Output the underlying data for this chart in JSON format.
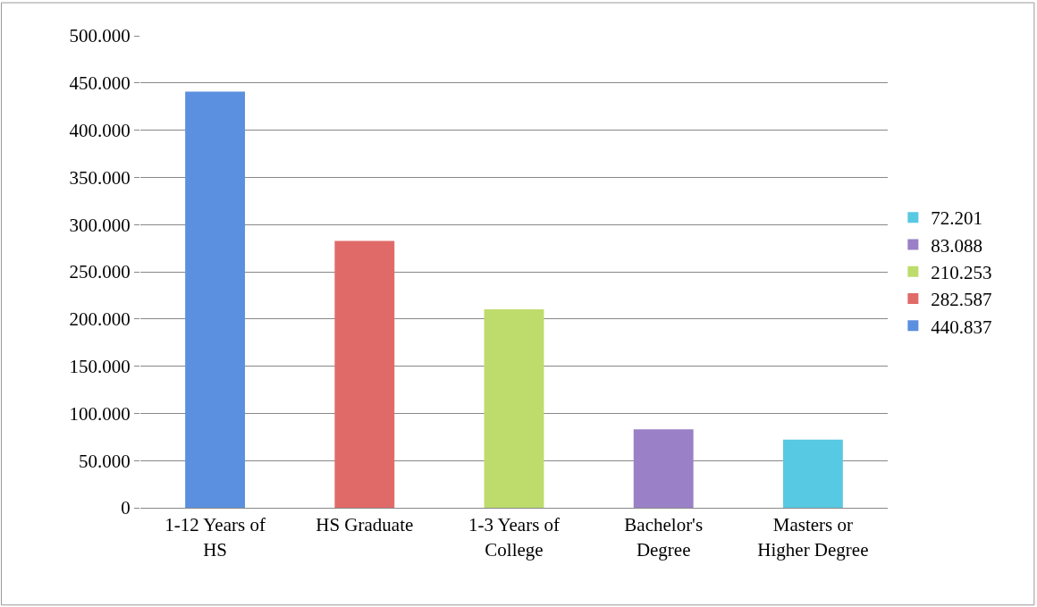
{
  "chart_data": {
    "type": "bar",
    "categories": [
      "1-12 Years of HS",
      "HS Graduate",
      "1-3 Years of College",
      "Bachelor's Degree",
      "Masters or Higher Degree"
    ],
    "series": [
      {
        "name": "440.837",
        "color": "#5b8fdf",
        "values": [
          440837,
          null,
          null,
          null,
          null
        ]
      },
      {
        "name": "282.587",
        "color": "#e06a68",
        "values": [
          null,
          282587,
          null,
          null,
          null
        ]
      },
      {
        "name": "210.253",
        "color": "#bddc6c",
        "values": [
          null,
          null,
          210253,
          null,
          null
        ]
      },
      {
        "name": "83.088",
        "color": "#9a80c6",
        "values": [
          null,
          null,
          null,
          83088,
          null
        ]
      },
      {
        "name": "72.201",
        "color": "#58c9e2",
        "values": [
          null,
          null,
          null,
          null,
          72201
        ]
      }
    ],
    "ylim": [
      0,
      500000
    ],
    "yticks": [
      {
        "value": 0,
        "label": "0"
      },
      {
        "value": 50000,
        "label": "50.000"
      },
      {
        "value": 100000,
        "label": "100.000"
      },
      {
        "value": 150000,
        "label": "150.000"
      },
      {
        "value": 200000,
        "label": "200.000"
      },
      {
        "value": 250000,
        "label": "250.000"
      },
      {
        "value": 300000,
        "label": "300.000"
      },
      {
        "value": 350000,
        "label": "350.000"
      },
      {
        "value": 400000,
        "label": "400.000"
      },
      {
        "value": 450000,
        "label": "450.000"
      },
      {
        "value": 500000,
        "label": "500.000"
      }
    ],
    "grid": "y",
    "legend": "right"
  }
}
